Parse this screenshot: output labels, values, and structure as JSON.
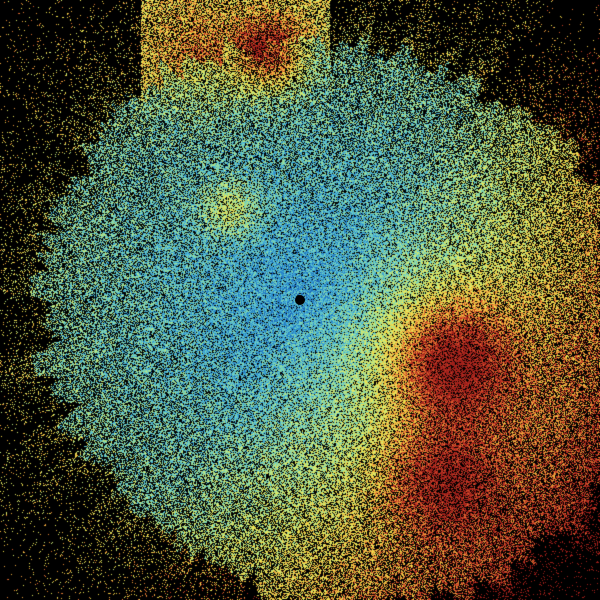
{
  "image": {
    "kind": "radar-reflectivity-sweep",
    "background": "#000000",
    "colormap": [
      "#1a5fb4",
      "#2a8fd0",
      "#5cc6d6",
      "#8fdca0",
      "#d8ec70",
      "#f2e24a",
      "#eda23a",
      "#d2452a",
      "#9e1f1a"
    ],
    "radar_site_marker": "radar-site-dot"
  }
}
